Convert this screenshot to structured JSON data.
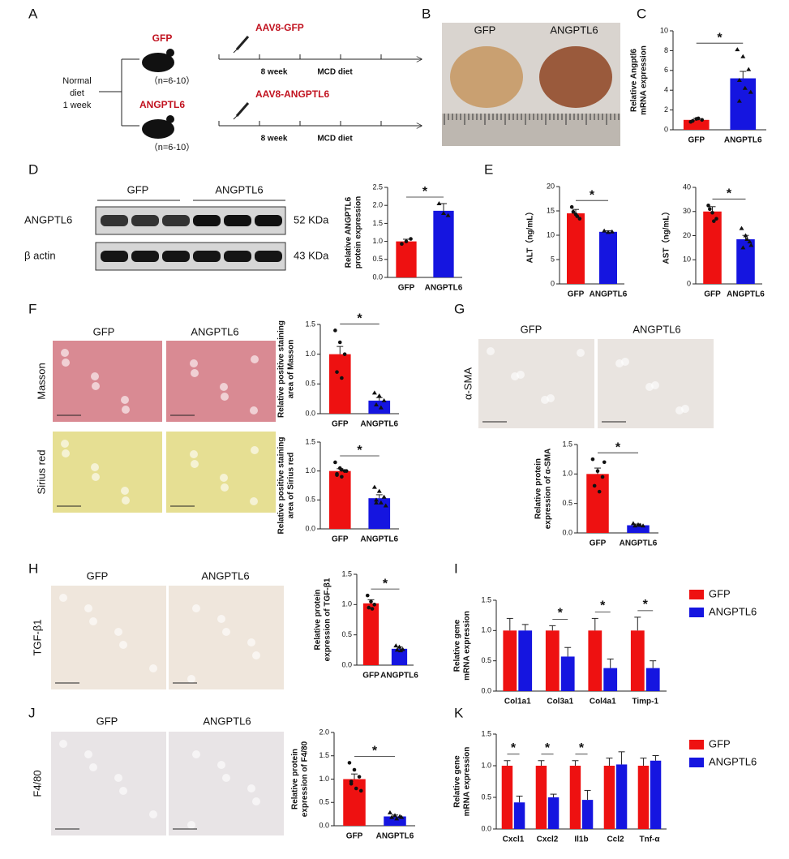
{
  "panel_labels": [
    "A",
    "B",
    "C",
    "D",
    "E",
    "F",
    "G",
    "H",
    "I",
    "J",
    "K"
  ],
  "schematic": {
    "start": [
      "Normal",
      "diet",
      "1 week"
    ],
    "groups": [
      {
        "name": "GFP",
        "n": "（n=6-10）",
        "vector": "AAV8-GFP",
        "duration": "8 week",
        "diet": "MCD diet"
      },
      {
        "name": "ANGPTL6",
        "n": "（n=6-10）",
        "vector": "AAV8-ANGPTL6",
        "duration": "8 week",
        "diet": "MCD diet"
      }
    ]
  },
  "liver_photo": {
    "labels": [
      "GFP",
      "ANGPTL6"
    ]
  },
  "western_blot": {
    "groups": [
      "GFP",
      "ANGPTL6"
    ],
    "rows": [
      {
        "protein": "ANGPTL6",
        "size": "52 KDa"
      },
      {
        "protein": "β actin",
        "size": "43 KDa"
      }
    ]
  },
  "histology": [
    {
      "columns": [
        "GFP",
        "ANGPTL6"
      ],
      "rows": [
        "Masson",
        "Sirius red"
      ]
    },
    {
      "columns": [
        "GFP",
        "ANGPTL6"
      ],
      "rows": [
        "α-SMA"
      ]
    },
    {
      "columns": [
        "GFP",
        "ANGPTL6"
      ],
      "rows": [
        "TGF-β1"
      ]
    },
    {
      "columns": [
        "GFP",
        "ANGPTL6"
      ],
      "rows": [
        "F4/80"
      ]
    }
  ],
  "chart_data": [
    {
      "type": "bar",
      "ylabel": [
        "Relative Angptl6",
        "mRNA expression"
      ],
      "categories": [
        "GFP",
        "ANGPTL6"
      ],
      "values": [
        1.0,
        5.2
      ],
      "errors": [
        0.15,
        0.7
      ],
      "points": [
        [
          0.8,
          1.1,
          1.0,
          0.9,
          1.15
        ],
        [
          8.1,
          7.4,
          6.1,
          5.0,
          4.2,
          3.8,
          2.9
        ]
      ],
      "colors": [
        "#ee1111",
        "#1515e0"
      ],
      "ylim": [
        0,
        10
      ],
      "yticks": [
        0,
        2,
        4,
        6,
        8,
        10
      ],
      "significance": "*"
    },
    {
      "type": "bar",
      "ylabel": [
        "Relative ANGPTL6",
        "protein expression"
      ],
      "categories": [
        "GFP",
        "ANGPTL6"
      ],
      "values": [
        1.0,
        1.85
      ],
      "errors": [
        0.06,
        0.2
      ],
      "points": [
        [
          0.93,
          1.0,
          1.07
        ],
        [
          2.05,
          1.78,
          1.72
        ]
      ],
      "colors": [
        "#ee1111",
        "#1515e0"
      ],
      "ylim": [
        0,
        2.5
      ],
      "yticks": [
        {
          "value": 0,
          "label": "0.0"
        },
        {
          "value": 0.5,
          "label": "0.5"
        },
        {
          "value": 1,
          "label": "1.0"
        },
        {
          "value": 1.5,
          "label": "1.5"
        },
        {
          "value": 2,
          "label": "2.0"
        },
        {
          "value": 2.5,
          "label": "2.5"
        }
      ],
      "significance": "*"
    },
    {
      "type": "bar",
      "ylabel": [
        "ALT（ng/mL）"
      ],
      "categories": [
        "GFP",
        "ANGPTL6"
      ],
      "values": [
        14.5,
        10.7
      ],
      "errors": [
        0.8,
        0.2
      ],
      "points": [
        [
          15.8,
          14.3,
          13.4,
          14.8,
          13.9
        ],
        [
          10.9,
          10.6,
          10.7
        ]
      ],
      "colors": [
        "#ee1111",
        "#1515e0"
      ],
      "ylim": [
        0,
        20
      ],
      "yticks": [
        0,
        5,
        10,
        15,
        20
      ],
      "significance": "*"
    },
    {
      "type": "bar",
      "ylabel": [
        "AST（ng/mL）"
      ],
      "categories": [
        "GFP",
        "ANGPTL6"
      ],
      "values": [
        30,
        18.5
      ],
      "errors": [
        2,
        1.6
      ],
      "points": [
        [
          32.5,
          29.5,
          27,
          31,
          26
        ],
        [
          23,
          20,
          17.5,
          15,
          18.5,
          16
        ]
      ],
      "colors": [
        "#ee1111",
        "#1515e0"
      ],
      "ylim": [
        0,
        40
      ],
      "yticks": [
        0,
        10,
        20,
        30,
        40
      ],
      "significance": "*"
    },
    {
      "type": "bar",
      "ylabel": [
        "Relative positive staining",
        "area of  Masson"
      ],
      "categories": [
        "GFP",
        "ANGPTL6"
      ],
      "values": [
        1.0,
        0.22
      ],
      "errors": [
        0.13,
        0.05
      ],
      "points": [
        [
          1.4,
          1.2,
          1.0,
          0.7,
          0.6
        ],
        [
          0.35,
          0.3,
          0.22,
          0.15,
          0.1
        ]
      ],
      "colors": [
        "#ee1111",
        "#1515e0"
      ],
      "ylim": [
        0,
        1.5
      ],
      "yticks": [
        {
          "value": 0,
          "label": "0.0"
        },
        {
          "value": 0.5,
          "label": "0.5"
        },
        {
          "value": 1,
          "label": "1.0"
        },
        {
          "value": 1.5,
          "label": "1.5"
        }
      ],
      "significance": "*"
    },
    {
      "type": "bar",
      "ylabel": [
        "Relative positive staining",
        "area of Sirius red"
      ],
      "categories": [
        "GFP",
        "ANGPTL6"
      ],
      "values": [
        1.0,
        0.53
      ],
      "errors": [
        0.04,
        0.06
      ],
      "points": [
        [
          1.15,
          1.05,
          1.0,
          0.95,
          0.9,
          1.0,
          0.93,
          1.02
        ],
        [
          0.72,
          0.65,
          0.55,
          0.5,
          0.45,
          0.4,
          0.45
        ]
      ],
      "colors": [
        "#ee1111",
        "#1515e0"
      ],
      "ylim": [
        0,
        1.5
      ],
      "yticks": [
        {
          "value": 0,
          "label": "0.0"
        },
        {
          "value": 0.5,
          "label": "0.5"
        },
        {
          "value": 1,
          "label": "1.0"
        },
        {
          "value": 1.5,
          "label": "1.5"
        }
      ],
      "significance": "*"
    },
    {
      "type": "bar",
      "ylabel": [
        "Relative protein",
        "expression of α-SMA"
      ],
      "categories": [
        "GFP",
        "ANGPTL6"
      ],
      "values": [
        1.0,
        0.13
      ],
      "errors": [
        0.1,
        0.02
      ],
      "points": [
        [
          1.25,
          1.05,
          0.95,
          0.8,
          0.7,
          1.2
        ],
        [
          0.16,
          0.14,
          0.12,
          0.12,
          0.13
        ]
      ],
      "colors": [
        "#ee1111",
        "#1515e0"
      ],
      "ylim": [
        0,
        1.5
      ],
      "yticks": [
        {
          "value": 0,
          "label": "0.0"
        },
        {
          "value": 0.5,
          "label": "0.5"
        },
        {
          "value": 1,
          "label": "1.0"
        },
        {
          "value": 1.5,
          "label": "1.5"
        }
      ],
      "significance": "*"
    },
    {
      "type": "bar",
      "ylabel": [
        "Relative protein",
        "expression of TGF-β1"
      ],
      "categories": [
        "GFP",
        "ANGPTL6"
      ],
      "values": [
        1.02,
        0.27
      ],
      "errors": [
        0.06,
        0.03
      ],
      "points": [
        [
          1.15,
          1.05,
          1.0,
          0.95,
          0.93
        ],
        [
          0.32,
          0.3,
          0.26,
          0.25,
          0.24
        ]
      ],
      "colors": [
        "#ee1111",
        "#1515e0"
      ],
      "ylim": [
        0,
        1.5
      ],
      "yticks": [
        {
          "value": 0,
          "label": "0.0"
        },
        {
          "value": 0.5,
          "label": "0.5"
        },
        {
          "value": 1,
          "label": "1.0"
        },
        {
          "value": 1.5,
          "label": "1.5"
        }
      ],
      "significance": "*"
    },
    {
      "type": "grouped_bar",
      "ylabel": [
        "Relative gene",
        "mRNA expression"
      ],
      "categories": [
        "Col1a1",
        "Col3a1",
        "Col4a1",
        "Timp-1"
      ],
      "series": [
        {
          "name": "GFP",
          "color": "#ee1111",
          "values": [
            1.0,
            1.0,
            1.0,
            1.0
          ],
          "errors": [
            0.2,
            0.08,
            0.2,
            0.22
          ]
        },
        {
          "name": "ANGPTL6",
          "color": "#1515e0",
          "values": [
            1.0,
            0.57,
            0.38,
            0.38
          ],
          "errors": [
            0.1,
            0.15,
            0.15,
            0.12
          ]
        }
      ],
      "ylim": [
        0,
        1.5
      ],
      "yticks": [
        {
          "value": 0,
          "label": "0.0"
        },
        {
          "value": 0.5,
          "label": "0.5"
        },
        {
          "value": 1,
          "label": "1.0"
        },
        {
          "value": 1.5,
          "label": "1.5"
        }
      ],
      "significance": [
        {
          "index": 1,
          "label": "*"
        },
        {
          "index": 2,
          "label": "*"
        },
        {
          "index": 3,
          "label": "*"
        }
      ],
      "legend": "right"
    },
    {
      "type": "bar",
      "ylabel": [
        "Relative protein",
        "expression of F4/80"
      ],
      "categories": [
        "GFP",
        "ANGPTL6"
      ],
      "values": [
        1.0,
        0.2
      ],
      "errors": [
        0.11,
        0.03
      ],
      "points": [
        [
          1.35,
          1.2,
          1.05,
          0.95,
          0.8,
          0.75,
          0.9
        ],
        [
          0.28,
          0.22,
          0.2,
          0.18,
          0.15,
          0.18
        ]
      ],
      "colors": [
        "#ee1111",
        "#1515e0"
      ],
      "ylim": [
        0,
        2
      ],
      "yticks": [
        {
          "value": 0,
          "label": "0.0"
        },
        {
          "value": 0.5,
          "label": "0.5"
        },
        {
          "value": 1,
          "label": "1.0"
        },
        {
          "value": 1.5,
          "label": "1.5"
        },
        {
          "value": 2,
          "label": "2.0"
        }
      ],
      "significance": "*"
    },
    {
      "type": "grouped_bar",
      "ylabel": [
        "Relative gene",
        "mRNA expression"
      ],
      "categories": [
        "Cxcl1",
        "Cxcl2",
        "Il1b",
        "Ccl2",
        "Tnf-α"
      ],
      "series": [
        {
          "name": "GFP",
          "color": "#ee1111",
          "values": [
            1.0,
            1.0,
            1.0,
            1.0,
            1.0
          ],
          "errors": [
            0.08,
            0.08,
            0.08,
            0.12,
            0.12
          ]
        },
        {
          "name": "ANGPTL6",
          "color": "#1515e0",
          "values": [
            0.42,
            0.5,
            0.46,
            1.02,
            1.08
          ],
          "errors": [
            0.1,
            0.05,
            0.15,
            0.2,
            0.08
          ]
        }
      ],
      "ylim": [
        0,
        1.5
      ],
      "yticks": [
        {
          "value": 0,
          "label": "0.0"
        },
        {
          "value": 0.5,
          "label": "0.5"
        },
        {
          "value": 1,
          "label": "1.0"
        },
        {
          "value": 1.5,
          "label": "1.5"
        }
      ],
      "significance": [
        {
          "index": 0,
          "label": "*"
        },
        {
          "index": 1,
          "label": "*"
        },
        {
          "index": 2,
          "label": "*"
        }
      ],
      "legend": "right"
    }
  ]
}
